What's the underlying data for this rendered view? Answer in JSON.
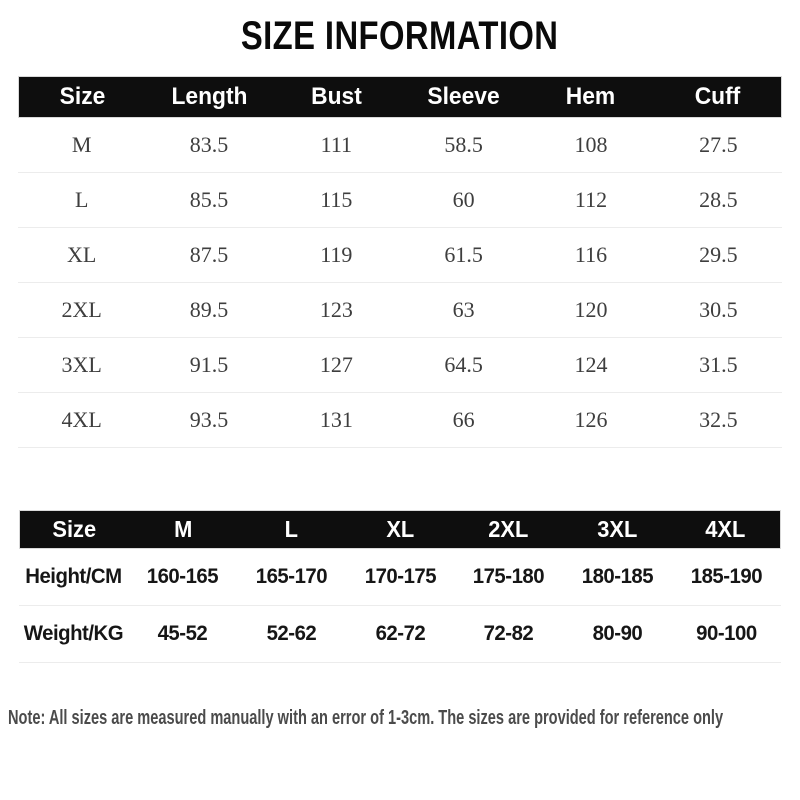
{
  "title": "SIZE INFORMATION",
  "size_table": {
    "headers": [
      "Size",
      "Length",
      "Bust",
      "Sleeve",
      "Hem",
      "Cuff"
    ],
    "rows": [
      [
        "M",
        "83.5",
        "111",
        "58.5",
        "108",
        "27.5"
      ],
      [
        "L",
        "85.5",
        "115",
        "60",
        "112",
        "28.5"
      ],
      [
        "XL",
        "87.5",
        "119",
        "61.5",
        "116",
        "29.5"
      ],
      [
        "2XL",
        "89.5",
        "123",
        "63",
        "120",
        "30.5"
      ],
      [
        "3XL",
        "91.5",
        "127",
        "64.5",
        "124",
        "31.5"
      ],
      [
        "4XL",
        "93.5",
        "131",
        "66",
        "126",
        "32.5"
      ]
    ]
  },
  "fit_table": {
    "headers": [
      "Size",
      "M",
      "L",
      "XL",
      "2XL",
      "3XL",
      "4XL"
    ],
    "rows": [
      [
        "Height/CM",
        "160-165",
        "165-170",
        "170-175",
        "175-180",
        "180-185",
        "185-190"
      ],
      [
        "Weight/KG",
        "45-52",
        "52-62",
        "62-72",
        "72-82",
        "80-90",
        "90-100"
      ]
    ]
  },
  "note": "Note: All sizes are measured manually with an error of 1-3cm. The sizes are provided for reference only",
  "colors": {
    "header_bg": "#0e0e0e",
    "header_text": "#ffffff",
    "body_text": "#3e3e3e",
    "fit_text": "#161616",
    "note_text": "#4b4b4b",
    "separator": "#ececec",
    "title_text": "#0a0a0a"
  }
}
